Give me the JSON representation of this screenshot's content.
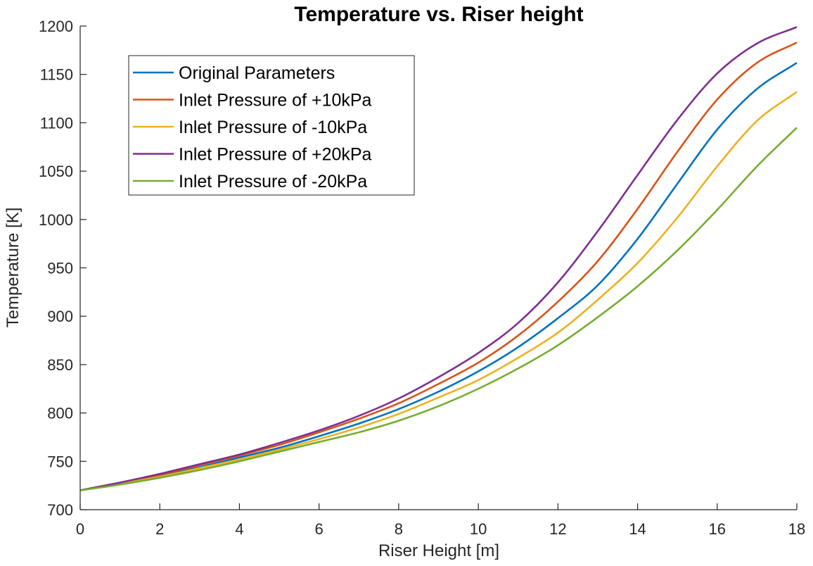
{
  "chart_data": {
    "type": "line",
    "title": "Temperature vs. Riser height",
    "xlabel": "Riser Height [m]",
    "ylabel": "Temperature [K]",
    "xlim": [
      0,
      18
    ],
    "ylim": [
      700,
      1200
    ],
    "xticks": [
      0,
      2,
      4,
      6,
      8,
      10,
      12,
      14,
      16,
      18
    ],
    "yticks": [
      700,
      750,
      800,
      850,
      900,
      950,
      1000,
      1050,
      1100,
      1150,
      1200
    ],
    "grid": false,
    "legend_position": "top-left",
    "x": [
      0,
      1,
      2,
      3,
      4,
      5,
      6,
      7,
      8,
      9,
      10,
      11,
      12,
      13,
      14,
      15,
      16,
      17,
      18
    ],
    "series": [
      {
        "name": "Original Parameters",
        "color": "#0072BD",
        "values": [
          720,
          727,
          735,
          744,
          754,
          764,
          776,
          789,
          804,
          822,
          843,
          868,
          898,
          932,
          980,
          1037,
          1093,
          1135,
          1162
        ]
      },
      {
        "name": "Inlet Pressure of +10kPa",
        "color": "#D95319",
        "values": [
          720,
          728,
          736,
          746,
          756,
          767,
          780,
          794,
          810,
          830,
          852,
          880,
          915,
          957,
          1011,
          1070,
          1124,
          1162,
          1183
        ]
      },
      {
        "name": "Inlet Pressure of -10kPa",
        "color": "#EDB120",
        "values": [
          720,
          727,
          734,
          743,
          752,
          762,
          773,
          785,
          799,
          816,
          834,
          857,
          883,
          917,
          955,
          1002,
          1055,
          1102,
          1132
        ]
      },
      {
        "name": "Inlet Pressure of +20kPa",
        "color": "#7E2F8E",
        "values": [
          720,
          728,
          737,
          747,
          757,
          769,
          782,
          797,
          815,
          837,
          862,
          893,
          935,
          988,
          1046,
          1103,
          1151,
          1182,
          1199
        ]
      },
      {
        "name": "Inlet Pressure of -20kPa",
        "color": "#77AC30",
        "values": [
          720,
          726,
          733,
          741,
          750,
          760,
          770,
          780,
          792,
          807,
          825,
          846,
          870,
          899,
          931,
          968,
          1010,
          1055,
          1095
        ]
      }
    ]
  }
}
